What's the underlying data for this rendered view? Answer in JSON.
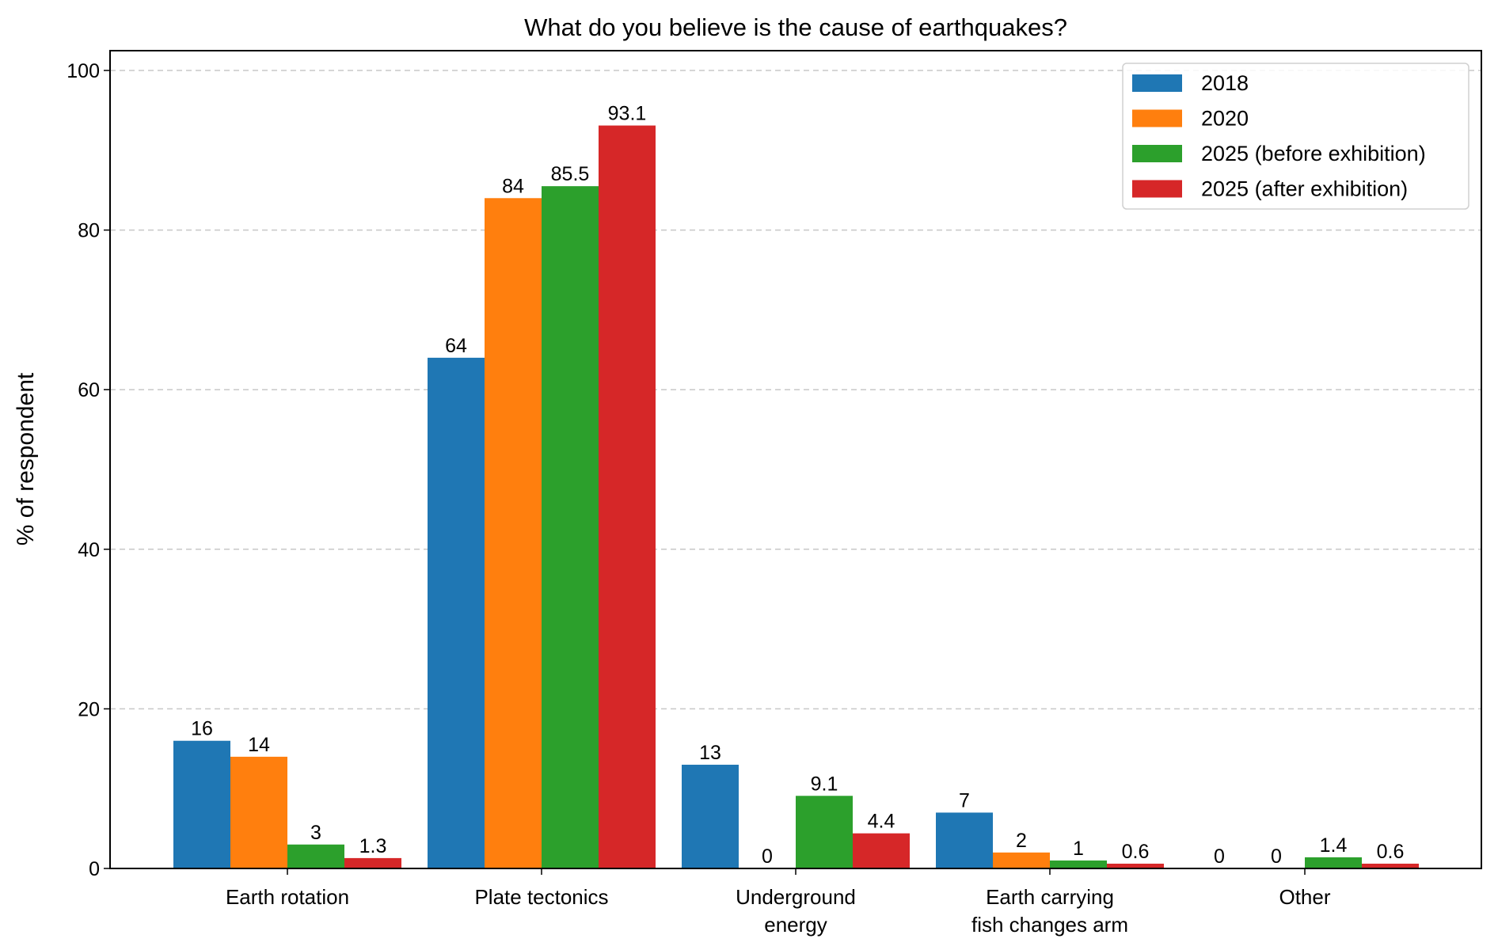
{
  "chart_data": {
    "type": "bar",
    "title": "What do you believe is the cause of earthquakes?",
    "xlabel": "",
    "ylabel": "% of respondent",
    "ylim": [
      0,
      102.5
    ],
    "yticks": [
      0,
      20,
      40,
      60,
      80,
      100
    ],
    "grid": "y dashed",
    "legend_position": "top-right",
    "categories": [
      "Earth rotation",
      "Plate tectonics",
      "Underground\nenergy",
      "Earth carrying\nfish changes arm",
      "Other"
    ],
    "series": [
      {
        "name": "2018",
        "color": "#1f77b4",
        "values": [
          16,
          64,
          13,
          7,
          0
        ]
      },
      {
        "name": "2020",
        "color": "#ff7f0e",
        "values": [
          14,
          84,
          0,
          2,
          0
        ]
      },
      {
        "name": "2025 (before exhibition)",
        "color": "#2ca02c",
        "values": [
          3,
          85.5,
          9.1,
          1,
          1.4
        ]
      },
      {
        "name": "2025 (after exhibition)",
        "color": "#d62728",
        "values": [
          1.3,
          93.1,
          4.4,
          0.6,
          0.6
        ]
      }
    ]
  }
}
